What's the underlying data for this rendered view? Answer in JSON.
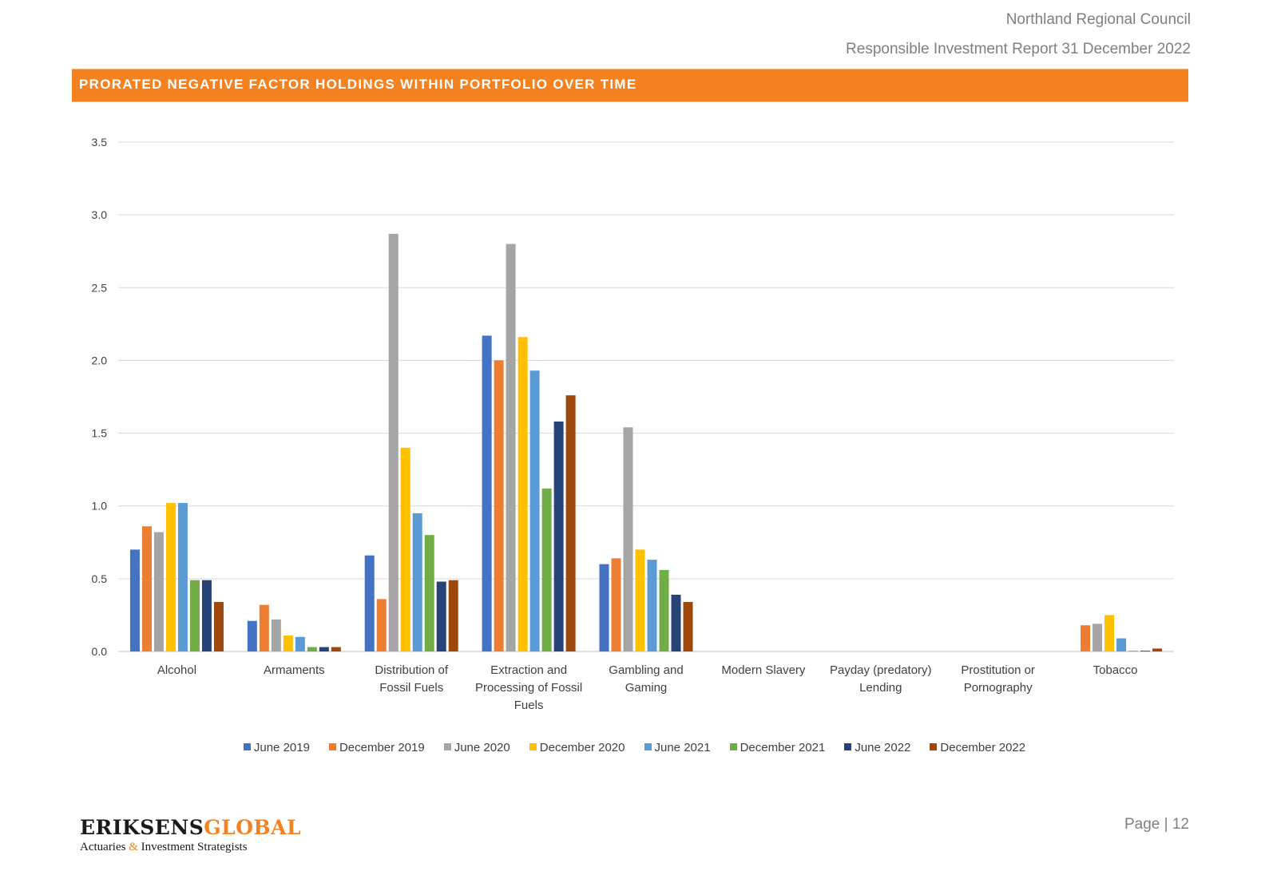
{
  "header": {
    "org": "Northland Regional Council",
    "report": "Responsible Investment Report 31 December 2022"
  },
  "section_title": "PRORATED NEGATIVE FACTOR HOLDINGS WITHIN PORTFOLIO OVER TIME",
  "footer": {
    "logo_part1": "ERIKSENS",
    "logo_part2": "GLOBAL",
    "tagline_part1": "Actuaries ",
    "tagline_amp": "&",
    "tagline_part2": " Investment Strategists",
    "page": "Page | 12"
  },
  "colors": {
    "accent": "#f58220",
    "grid": "#d9d9d9",
    "axis": "#bfbfbf"
  },
  "chart_data": {
    "type": "bar",
    "title": "",
    "xlabel": "",
    "ylabel": "",
    "ylim": [
      0,
      3.5
    ],
    "yticks": [
      "0.0",
      "0.5",
      "1.0",
      "1.5",
      "2.0",
      "2.5",
      "3.0",
      "3.5"
    ],
    "grid": true,
    "legend_position": "bottom",
    "categories": [
      [
        "Alcohol"
      ],
      [
        "Armaments"
      ],
      [
        "Distribution of",
        "Fossil Fuels"
      ],
      [
        "Extraction and",
        "Processing of Fossil",
        "Fuels"
      ],
      [
        "Gambling and",
        "Gaming"
      ],
      [
        "Modern Slavery"
      ],
      [
        "Payday (predatory)",
        "Lending"
      ],
      [
        "Prostitution or",
        "Pornography"
      ],
      [
        "Tobacco"
      ]
    ],
    "series": [
      {
        "name": "June 2019",
        "color": "#4472c4",
        "values": [
          0.7,
          0.21,
          0.66,
          2.17,
          0.6,
          0,
          0,
          0,
          0
        ]
      },
      {
        "name": "December 2019",
        "color": "#ed7d31",
        "values": [
          0.86,
          0.32,
          0.36,
          2.0,
          0.64,
          0,
          0,
          0,
          0.18
        ]
      },
      {
        "name": "June 2020",
        "color": "#a5a5a5",
        "values": [
          0.82,
          0.22,
          2.87,
          2.8,
          1.54,
          0,
          0,
          0,
          0.19
        ]
      },
      {
        "name": "December 2020",
        "color": "#ffc000",
        "values": [
          1.02,
          0.11,
          1.4,
          2.16,
          0.7,
          0,
          0,
          0,
          0.25
        ]
      },
      {
        "name": "June 2021",
        "color": "#5b9bd5",
        "values": [
          1.02,
          0.1,
          0.95,
          1.93,
          0.63,
          0,
          0,
          0,
          0.09
        ]
      },
      {
        "name": "December 2021",
        "color": "#70ad47",
        "values": [
          0.49,
          0.03,
          0.8,
          1.12,
          0.56,
          0,
          0,
          0,
          0.005
        ]
      },
      {
        "name": "June 2022",
        "color": "#264478",
        "values": [
          0.49,
          0.03,
          0.48,
          1.58,
          0.39,
          0,
          0,
          0,
          0.005
        ]
      },
      {
        "name": "December 2022",
        "color": "#9e480e",
        "values": [
          0.34,
          0.03,
          0.49,
          1.76,
          0.34,
          0,
          0,
          0,
          0.02
        ]
      }
    ]
  }
}
